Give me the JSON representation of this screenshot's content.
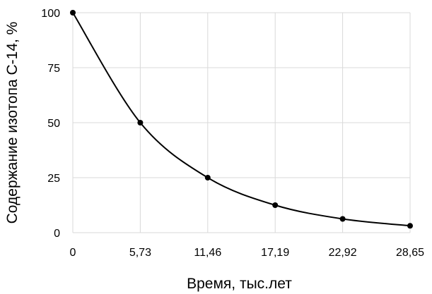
{
  "chart_data": {
    "type": "scatter",
    "title": "",
    "xlabel": "Время, тыс.лет",
    "ylabel": "Содержание изотопа С-14, %",
    "x_tick_labels": [
      "0",
      "5,73",
      "11,46",
      "17,19",
      "22,92",
      "28,65"
    ],
    "y_tick_labels": [
      "0",
      "25",
      "50",
      "75",
      "100"
    ],
    "xlim": [
      0,
      28.65
    ],
    "ylim": [
      0,
      100
    ],
    "grid": true,
    "legend": "none",
    "series": [
      {
        "x": [
          0,
          5.73,
          11.46,
          17.19,
          22.92,
          28.65
        ],
        "y": [
          100,
          50,
          25,
          12.5,
          6.25,
          3.125
        ],
        "line": "smooth",
        "markers": true,
        "color": "#000000"
      }
    ]
  }
}
